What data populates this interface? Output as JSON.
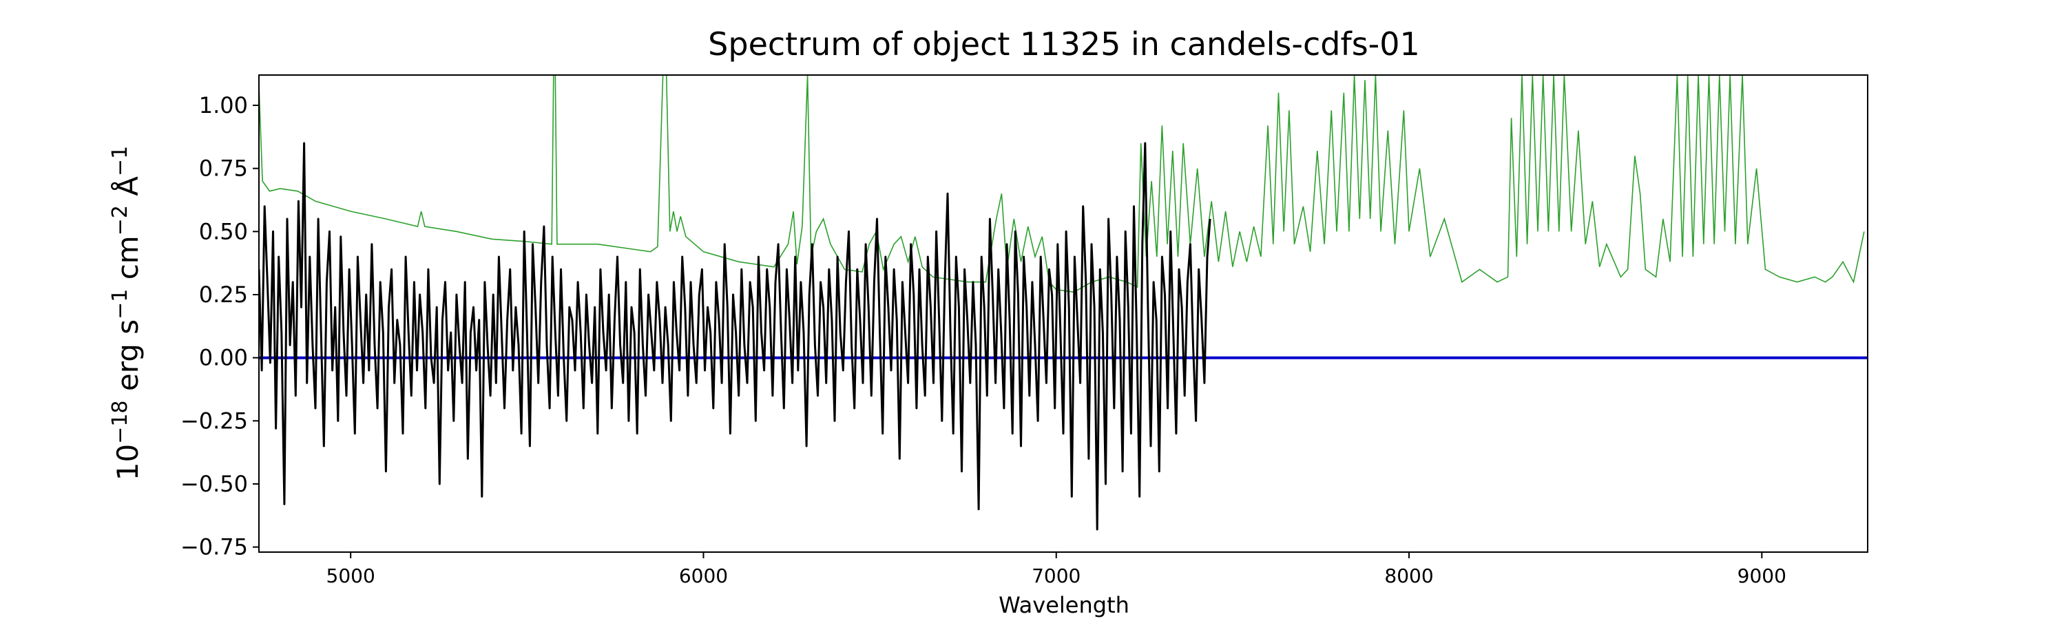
{
  "chart_data": {
    "type": "line",
    "title": "Spectrum of object 11325 in candels-cdfs-01",
    "xlabel": "Wavelength",
    "ylabel_parts": [
      "10",
      "−18",
      " erg s",
      "−1",
      " cm",
      "−2",
      " Å",
      "−1"
    ],
    "xlim": [
      4740,
      9300
    ],
    "ylim": [
      -0.77,
      1.12
    ],
    "xticks": [
      5000,
      6000,
      7000,
      8000,
      9000
    ],
    "xtick_labels": [
      "5000",
      "6000",
      "7000",
      "8000",
      "9000"
    ],
    "yticks": [
      -0.75,
      -0.5,
      -0.25,
      0.0,
      0.25,
      0.5,
      0.75,
      1.0
    ],
    "ytick_labels": [
      "−0.75",
      "−0.50",
      "−0.25",
      "0.00",
      "0.25",
      "0.50",
      "0.75",
      "1.00"
    ],
    "grid": false,
    "colors": {
      "flux": "#000000",
      "sky": "#2ca02c",
      "zero": "#0000cc"
    },
    "series": [
      {
        "key": "sky",
        "points": [
          [
            4740,
            1.08
          ],
          [
            4750,
            0.7
          ],
          [
            4770,
            0.66
          ],
          [
            4800,
            0.67
          ],
          [
            4850,
            0.66
          ],
          [
            4900,
            0.62
          ],
          [
            5000,
            0.58
          ],
          [
            5100,
            0.55
          ],
          [
            5190,
            0.52
          ],
          [
            5200,
            0.58
          ],
          [
            5210,
            0.52
          ],
          [
            5300,
            0.5
          ],
          [
            5400,
            0.47
          ],
          [
            5500,
            0.46
          ],
          [
            5570,
            0.45
          ],
          [
            5575,
            1.12
          ],
          [
            5580,
            1.12
          ],
          [
            5585,
            0.45
          ],
          [
            5700,
            0.45
          ],
          [
            5800,
            0.43
          ],
          [
            5850,
            0.42
          ],
          [
            5870,
            0.44
          ],
          [
            5885,
            1.12
          ],
          [
            5895,
            1.12
          ],
          [
            5905,
            0.5
          ],
          [
            5915,
            0.58
          ],
          [
            5925,
            0.5
          ],
          [
            5935,
            0.56
          ],
          [
            5950,
            0.48
          ],
          [
            6000,
            0.42
          ],
          [
            6100,
            0.38
          ],
          [
            6150,
            0.37
          ],
          [
            6200,
            0.36
          ],
          [
            6240,
            0.45
          ],
          [
            6255,
            0.58
          ],
          [
            6265,
            0.37
          ],
          [
            6280,
            0.52
          ],
          [
            6295,
            1.12
          ],
          [
            6305,
            0.4
          ],
          [
            6320,
            0.5
          ],
          [
            6340,
            0.55
          ],
          [
            6360,
            0.45
          ],
          [
            6400,
            0.35
          ],
          [
            6450,
            0.34
          ],
          [
            6470,
            0.45
          ],
          [
            6490,
            0.5
          ],
          [
            6510,
            0.35
          ],
          [
            6540,
            0.45
          ],
          [
            6560,
            0.48
          ],
          [
            6580,
            0.38
          ],
          [
            6600,
            0.48
          ],
          [
            6620,
            0.36
          ],
          [
            6650,
            0.32
          ],
          [
            6700,
            0.31
          ],
          [
            6750,
            0.3
          ],
          [
            6800,
            0.3
          ],
          [
            6830,
            0.55
          ],
          [
            6845,
            0.65
          ],
          [
            6860,
            0.35
          ],
          [
            6880,
            0.55
          ],
          [
            6900,
            0.38
          ],
          [
            6920,
            0.52
          ],
          [
            6940,
            0.4
          ],
          [
            6960,
            0.48
          ],
          [
            6980,
            0.3
          ],
          [
            7000,
            0.27
          ],
          [
            7050,
            0.26
          ],
          [
            7100,
            0.3
          ],
          [
            7150,
            0.32
          ],
          [
            7200,
            0.3
          ],
          [
            7230,
            0.28
          ],
          [
            7240,
            0.85
          ],
          [
            7255,
            0.4
          ],
          [
            7270,
            0.7
          ],
          [
            7285,
            0.4
          ],
          [
            7300,
            0.92
          ],
          [
            7315,
            0.45
          ],
          [
            7330,
            0.82
          ],
          [
            7345,
            0.4
          ],
          [
            7360,
            0.85
          ],
          [
            7380,
            0.45
          ],
          [
            7400,
            0.75
          ],
          [
            7420,
            0.4
          ],
          [
            7440,
            0.62
          ],
          [
            7460,
            0.38
          ],
          [
            7480,
            0.58
          ],
          [
            7500,
            0.36
          ],
          [
            7520,
            0.5
          ],
          [
            7540,
            0.38
          ],
          [
            7560,
            0.52
          ],
          [
            7580,
            0.4
          ],
          [
            7600,
            0.92
          ],
          [
            7615,
            0.45
          ],
          [
            7630,
            1.05
          ],
          [
            7645,
            0.5
          ],
          [
            7660,
            0.98
          ],
          [
            7675,
            0.45
          ],
          [
            7700,
            0.6
          ],
          [
            7720,
            0.42
          ],
          [
            7740,
            0.82
          ],
          [
            7760,
            0.45
          ],
          [
            7780,
            0.98
          ],
          [
            7795,
            0.5
          ],
          [
            7815,
            1.05
          ],
          [
            7830,
            0.5
          ],
          [
            7845,
            1.12
          ],
          [
            7860,
            0.55
          ],
          [
            7875,
            1.1
          ],
          [
            7890,
            0.55
          ],
          [
            7905,
            1.12
          ],
          [
            7920,
            0.5
          ],
          [
            7940,
            0.9
          ],
          [
            7960,
            0.45
          ],
          [
            7985,
            0.98
          ],
          [
            8000,
            0.5
          ],
          [
            8030,
            0.75
          ],
          [
            8060,
            0.4
          ],
          [
            8100,
            0.55
          ],
          [
            8150,
            0.3
          ],
          [
            8200,
            0.35
          ],
          [
            8250,
            0.3
          ],
          [
            8280,
            0.32
          ],
          [
            8290,
            0.95
          ],
          [
            8305,
            0.4
          ],
          [
            8320,
            1.12
          ],
          [
            8335,
            0.45
          ],
          [
            8350,
            1.12
          ],
          [
            8365,
            0.5
          ],
          [
            8380,
            1.12
          ],
          [
            8395,
            0.5
          ],
          [
            8410,
            1.12
          ],
          [
            8425,
            0.5
          ],
          [
            8440,
            1.12
          ],
          [
            8460,
            0.5
          ],
          [
            8480,
            0.9
          ],
          [
            8500,
            0.45
          ],
          [
            8520,
            0.62
          ],
          [
            8540,
            0.36
          ],
          [
            8560,
            0.45
          ],
          [
            8600,
            0.32
          ],
          [
            8620,
            0.35
          ],
          [
            8640,
            0.8
          ],
          [
            8655,
            0.65
          ],
          [
            8670,
            0.35
          ],
          [
            8700,
            0.32
          ],
          [
            8720,
            0.55
          ],
          [
            8740,
            0.38
          ],
          [
            8760,
            1.12
          ],
          [
            8775,
            0.4
          ],
          [
            8790,
            1.12
          ],
          [
            8805,
            0.4
          ],
          [
            8820,
            1.12
          ],
          [
            8835,
            0.45
          ],
          [
            8850,
            1.12
          ],
          [
            8865,
            0.45
          ],
          [
            8880,
            1.12
          ],
          [
            8895,
            0.5
          ],
          [
            8910,
            1.12
          ],
          [
            8925,
            0.45
          ],
          [
            8945,
            1.12
          ],
          [
            8960,
            0.45
          ],
          [
            8985,
            0.75
          ],
          [
            9010,
            0.35
          ],
          [
            9050,
            0.32
          ],
          [
            9100,
            0.3
          ],
          [
            9150,
            0.32
          ],
          [
            9180,
            0.3
          ],
          [
            9200,
            0.32
          ],
          [
            9230,
            0.38
          ],
          [
            9260,
            0.3
          ],
          [
            9290,
            0.5
          ]
        ]
      },
      {
        "key": "zero",
        "points": [
          [
            4740,
            0.0
          ],
          [
            9300,
            0.0
          ]
        ]
      }
    ],
    "flux_series": {
      "key": "flux",
      "x_start": 4740,
      "x_step": 8,
      "values": [
        0.35,
        -0.05,
        0.6,
        0.3,
        -0.02,
        0.5,
        -0.28,
        0.4,
        0.1,
        -0.58,
        0.55,
        0.05,
        0.3,
        -0.15,
        0.62,
        0.2,
        0.85,
        -0.1,
        0.4,
        0.05,
        -0.2,
        0.55,
        0.1,
        -0.35,
        0.3,
        0.5,
        -0.05,
        0.2,
        -0.25,
        0.48,
        0.1,
        -0.15,
        0.35,
        0.05,
        -0.3,
        0.4,
        0.15,
        -0.1,
        0.25,
        -0.05,
        0.45,
        0.05,
        -0.2,
        0.3,
        0.1,
        -0.45,
        0.2,
        0.35,
        -0.1,
        0.15,
        0.05,
        -0.3,
        0.4,
        0.1,
        -0.15,
        0.3,
        -0.05,
        0.25,
        0.1,
        -0.2,
        0.35,
        0.0,
        -0.1,
        0.2,
        -0.5,
        0.15,
        0.3,
        -0.05,
        0.1,
        -0.25,
        0.25,
        0.05,
        -0.1,
        0.3,
        -0.4,
        0.1,
        0.2,
        -0.05,
        0.15,
        -0.55,
        0.3,
        0.05,
        -0.15,
        0.25,
        -0.1,
        0.4,
        0.1,
        -0.2,
        0.15,
        0.35,
        -0.05,
        0.2,
        0.05,
        -0.3,
        0.5,
        0.1,
        -0.35,
        0.45,
        0.2,
        -0.1,
        0.3,
        0.52,
        0.05,
        -0.2,
        0.4,
        0.1,
        -0.15,
        0.35,
        0.0,
        -0.25,
        0.2,
        0.15,
        -0.05,
        0.3,
        0.1,
        -0.2,
        0.25,
        0.05,
        -0.1,
        0.2,
        -0.3,
        0.35,
        0.1,
        -0.05,
        0.25,
        -0.2,
        0.15,
        0.4,
        0.05,
        -0.1,
        0.3,
        -0.25,
        0.2,
        0.1,
        -0.3,
        0.35,
        0.05,
        -0.15,
        0.25,
        0.1,
        -0.05,
        0.3,
        0.15,
        -0.1,
        0.2,
        0.05,
        -0.25,
        0.3,
        0.1,
        -0.05,
        0.4,
        0.2,
        -0.15,
        0.3,
        0.05,
        -0.1,
        0.25,
        0.35,
        -0.05,
        0.2,
        0.1,
        -0.2,
        0.3,
        0.15,
        -0.1,
        0.45,
        0.2,
        -0.3,
        0.25,
        0.1,
        -0.15,
        0.35,
        0.05,
        -0.1,
        0.3,
        0.2,
        -0.25,
        0.4,
        0.1,
        -0.05,
        0.35,
        0.2,
        -0.15,
        0.3,
        0.45,
        0.1,
        -0.2,
        0.35,
        0.15,
        -0.1,
        0.4,
        -0.05,
        0.3,
        0.1,
        -0.35,
        0.25,
        0.45,
        0.05,
        -0.15,
        0.3,
        0.2,
        -0.1,
        0.35,
        0.15,
        -0.25,
        0.4,
        0.1,
        -0.05,
        0.3,
        0.5,
        0.05,
        -0.2,
        0.35,
        0.15,
        -0.1,
        0.45,
        0.2,
        -0.15,
        0.3,
        0.55,
        0.1,
        -0.3,
        0.4,
        0.2,
        -0.05,
        0.35,
        0.15,
        -0.4,
        0.3,
        0.1,
        -0.1,
        0.45,
        0.25,
        -0.2,
        0.35,
        0.05,
        -0.15,
        0.4,
        0.2,
        -0.1,
        0.5,
        0.15,
        -0.25,
        0.3,
        0.65,
        0.1,
        -0.3,
        0.4,
        0.2,
        -0.45,
        0.35,
        0.15,
        -0.1,
        0.3,
        0.05,
        -0.6,
        0.4,
        0.2,
        -0.15,
        0.55,
        0.25,
        -0.1,
        0.35,
        0.1,
        -0.2,
        0.45,
        0.15,
        -0.3,
        0.5,
        0.25,
        -0.35,
        0.4,
        0.2,
        -0.15,
        0.3,
        0.05,
        -0.25,
        0.4,
        0.15,
        -0.1,
        0.35,
        0.25,
        -0.2,
        0.45,
        0.1,
        -0.3,
        0.5,
        0.2,
        -0.55,
        0.4,
        0.15,
        -0.1,
        0.6,
        0.3,
        -0.4,
        0.45,
        0.2,
        -0.68,
        0.35,
        0.1,
        -0.5,
        0.55,
        0.25,
        -0.2,
        0.4,
        0.15,
        -0.45,
        0.5,
        0.2,
        -0.3,
        0.6,
        0.1,
        -0.55,
        0.45,
        0.85,
        0.2,
        -0.35,
        0.3,
        0.15,
        -0.45,
        0.4,
        0.25,
        -0.2,
        0.5,
        0.1,
        -0.3,
        0.35,
        0.2,
        -0.15,
        0.3,
        0.45,
        0.05,
        -0.25,
        0.35,
        0.15,
        -0.1,
        0.4,
        0.55
      ]
    }
  }
}
